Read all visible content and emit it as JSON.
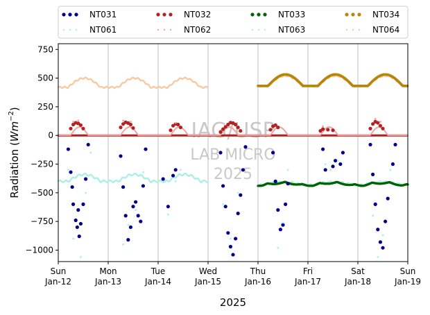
{
  "chart_data": {
    "type": "scatter",
    "xlabel": "2025",
    "ylabel_text": "Radiation (",
    "ylabel_unit_base": "Wm",
    "ylabel_unit_exp": "−2",
    "ylabel_close": ")",
    "ylim": [
      -1100,
      800
    ],
    "yticks": [
      750,
      500,
      250,
      0,
      -250,
      -500,
      -750,
      -1000
    ],
    "ytick_labels": [
      "750",
      "500",
      "250",
      "0",
      "−250",
      "−500",
      "−750",
      "−1000"
    ],
    "xlim": [
      0,
      7
    ],
    "xticks": [
      0,
      1,
      2,
      3,
      4,
      5,
      6,
      7
    ],
    "xtick_days": [
      "Sun",
      "Mon",
      "Tue",
      "Wed",
      "Thu",
      "Fri",
      "Sat",
      "Sun"
    ],
    "xtick_dates": [
      "Jan-12",
      "Jan-13",
      "Jan-14",
      "Jan-15",
      "Jan-16",
      "Jan-17",
      "Jan-18",
      "Jan-19"
    ],
    "grid": "vertical",
    "legend": {
      "placement": "top",
      "columns": 4
    },
    "watermark": [
      "IAG/USP",
      "LAB MICRO",
      "2025"
    ],
    "series": [
      {
        "name": "NT031",
        "color": "#00008b",
        "style": "dots"
      },
      {
        "name": "NT032",
        "color": "#b22222",
        "style": "dots"
      },
      {
        "name": "NT033",
        "color": "#006400",
        "style": "dots"
      },
      {
        "name": "NT034",
        "color": "#b8860b",
        "style": "dots"
      },
      {
        "name": "NT061",
        "color": "#9ff1ff",
        "style": "dotted"
      },
      {
        "name": "NT062",
        "color": "#f4a3a0",
        "style": "dotted"
      },
      {
        "name": "NT063",
        "color": "#afefe6",
        "style": "dotted"
      },
      {
        "name": "NT064",
        "color": "#f9c9a2",
        "style": "dotted"
      }
    ],
    "points": {
      "NT031": [
        [
          0.2,
          -120
        ],
        [
          0.25,
          -320
        ],
        [
          0.28,
          -450
        ],
        [
          0.3,
          -600
        ],
        [
          0.35,
          -740
        ],
        [
          0.38,
          -800
        ],
        [
          0.4,
          -650
        ],
        [
          0.42,
          -880
        ],
        [
          0.45,
          -770
        ],
        [
          0.5,
          -600
        ],
        [
          0.55,
          -380
        ],
        [
          0.6,
          -80
        ],
        [
          1.25,
          -180
        ],
        [
          1.3,
          -450
        ],
        [
          1.35,
          -700
        ],
        [
          1.4,
          -910
        ],
        [
          1.45,
          -800
        ],
        [
          1.5,
          -620
        ],
        [
          1.55,
          -580
        ],
        [
          1.6,
          -700
        ],
        [
          1.65,
          -750
        ],
        [
          1.7,
          -440
        ],
        [
          1.75,
          -120
        ],
        [
          2.1,
          -380
        ],
        [
          2.2,
          -620
        ],
        [
          2.3,
          -350
        ],
        [
          2.35,
          -300
        ],
        [
          3.25,
          -150
        ],
        [
          3.3,
          -440
        ],
        [
          3.35,
          -620
        ],
        [
          3.4,
          -850
        ],
        [
          3.45,
          -970
        ],
        [
          3.5,
          -1040
        ],
        [
          3.55,
          -900
        ],
        [
          3.6,
          -680
        ],
        [
          3.65,
          -520
        ],
        [
          3.7,
          -300
        ],
        [
          3.75,
          -100
        ],
        [
          4.3,
          -150
        ],
        [
          4.35,
          -400
        ],
        [
          4.4,
          -650
        ],
        [
          4.45,
          -820
        ],
        [
          4.5,
          -780
        ],
        [
          4.55,
          -600
        ],
        [
          4.6,
          -420
        ],
        [
          5.3,
          -120
        ],
        [
          5.35,
          -300
        ],
        [
          5.5,
          -270
        ],
        [
          5.55,
          -220
        ],
        [
          5.65,
          -250
        ],
        [
          5.7,
          -150
        ],
        [
          6.25,
          -80
        ],
        [
          6.3,
          -340
        ],
        [
          6.35,
          -600
        ],
        [
          6.4,
          -820
        ],
        [
          6.45,
          -930
        ],
        [
          6.5,
          -980
        ],
        [
          6.55,
          -750
        ],
        [
          6.6,
          -550
        ],
        [
          6.7,
          -250
        ],
        [
          6.75,
          -80
        ]
      ],
      "NT032": [
        [
          0.25,
          60
        ],
        [
          0.3,
          95
        ],
        [
          0.35,
          110
        ],
        [
          0.4,
          105
        ],
        [
          0.45,
          90
        ],
        [
          0.5,
          60
        ],
        [
          1.25,
          70
        ],
        [
          1.3,
          100
        ],
        [
          1.35,
          115
        ],
        [
          1.4,
          108
        ],
        [
          1.45,
          95
        ],
        [
          1.5,
          65
        ],
        [
          2.25,
          45
        ],
        [
          2.3,
          85
        ],
        [
          2.35,
          100
        ],
        [
          2.4,
          95
        ],
        [
          2.45,
          70
        ],
        [
          3.25,
          30
        ],
        [
          3.3,
          55
        ],
        [
          3.35,
          75
        ],
        [
          3.4,
          95
        ],
        [
          3.45,
          112
        ],
        [
          3.5,
          108
        ],
        [
          3.55,
          95
        ],
        [
          3.6,
          70
        ],
        [
          3.65,
          40
        ],
        [
          4.25,
          50
        ],
        [
          4.3,
          80
        ],
        [
          4.35,
          90
        ],
        [
          4.4,
          70
        ],
        [
          5.25,
          40
        ],
        [
          5.3,
          55
        ],
        [
          5.4,
          50
        ],
        [
          5.5,
          45
        ],
        [
          6.25,
          60
        ],
        [
          6.3,
          100
        ],
        [
          6.35,
          120
        ],
        [
          6.4,
          110
        ],
        [
          6.45,
          85
        ],
        [
          6.5,
          60
        ]
      ],
      "NT061": [
        [
          0.2,
          -300
        ],
        [
          0.3,
          -900
        ],
        [
          0.45,
          -1060
        ],
        [
          0.55,
          -500
        ],
        [
          0.65,
          -150
        ],
        [
          1.3,
          -950
        ],
        [
          1.4,
          -780
        ],
        [
          1.55,
          -650
        ],
        [
          1.7,
          -320
        ],
        [
          2.2,
          -690
        ],
        [
          2.35,
          -400
        ],
        [
          2.45,
          -300
        ],
        [
          3.3,
          -600
        ],
        [
          3.45,
          -900
        ],
        [
          3.6,
          -500
        ],
        [
          4.4,
          -980
        ],
        [
          4.5,
          -760
        ],
        [
          4.6,
          -300
        ],
        [
          5.35,
          -250
        ],
        [
          5.45,
          -300
        ],
        [
          5.6,
          -220
        ],
        [
          6.3,
          -700
        ],
        [
          6.4,
          -1060
        ],
        [
          6.5,
          -870
        ],
        [
          6.65,
          -300
        ]
      ],
      "NT062": [
        [
          0.3,
          120
        ],
        [
          0.4,
          130
        ],
        [
          1.3,
          130
        ],
        [
          1.45,
          120
        ],
        [
          2.35,
          110
        ],
        [
          5.3,
          80
        ],
        [
          6.35,
          145
        ],
        [
          6.45,
          120
        ]
      ]
    }
  }
}
